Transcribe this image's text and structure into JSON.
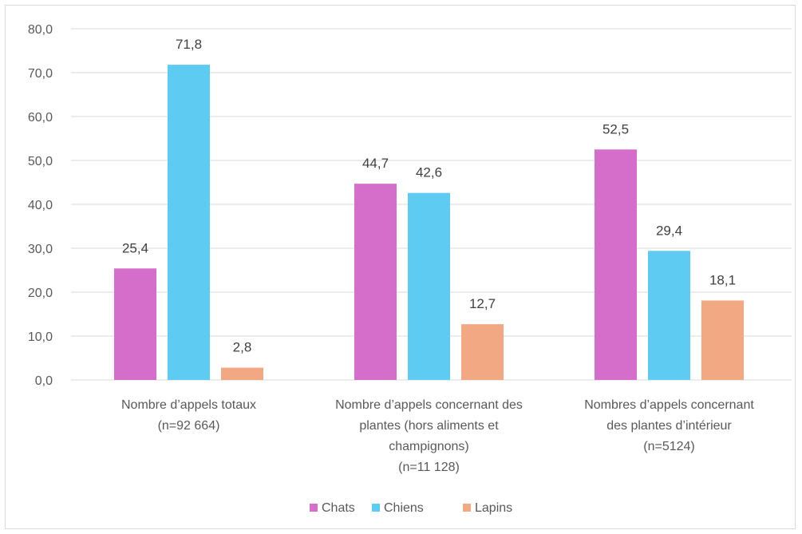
{
  "chart_data": {
    "type": "bar",
    "categories": [
      [
        "Nombre d’appels totaux",
        "(n=92 664)"
      ],
      [
        "Nombre d’appels concernant des",
        "plantes (hors aliments et",
        "champignons)",
        "(n=11 128)"
      ],
      [
        "Nombres d’appels concernant",
        "des plantes d’intérieur",
        "(n=5124)"
      ]
    ],
    "series": [
      {
        "name": "Chats",
        "color": "#d56ecb",
        "values": [
          25.4,
          44.7,
          52.5
        ],
        "labels": [
          "25,4",
          "44,7",
          "52,5"
        ]
      },
      {
        "name": "Chiens",
        "color": "#5ecbf2",
        "values": [
          71.8,
          42.6,
          29.4
        ],
        "labels": [
          "71,8",
          "42,6",
          "29,4"
        ]
      },
      {
        "name": "Lapins",
        "color": "#f2a983",
        "values": [
          2.8,
          12.7,
          18.1
        ],
        "labels": [
          "2,8",
          "12,7",
          "18,1"
        ]
      }
    ],
    "ylim": [
      0,
      80
    ],
    "yticks": [
      "0,0",
      "10,0",
      "20,0",
      "30,0",
      "40,0",
      "50,0",
      "60,0",
      "70,0",
      "80,0"
    ],
    "ytick_values": [
      0,
      10,
      20,
      30,
      40,
      50,
      60,
      70,
      80
    ],
    "grid": true,
    "legend_position": "bottom"
  }
}
